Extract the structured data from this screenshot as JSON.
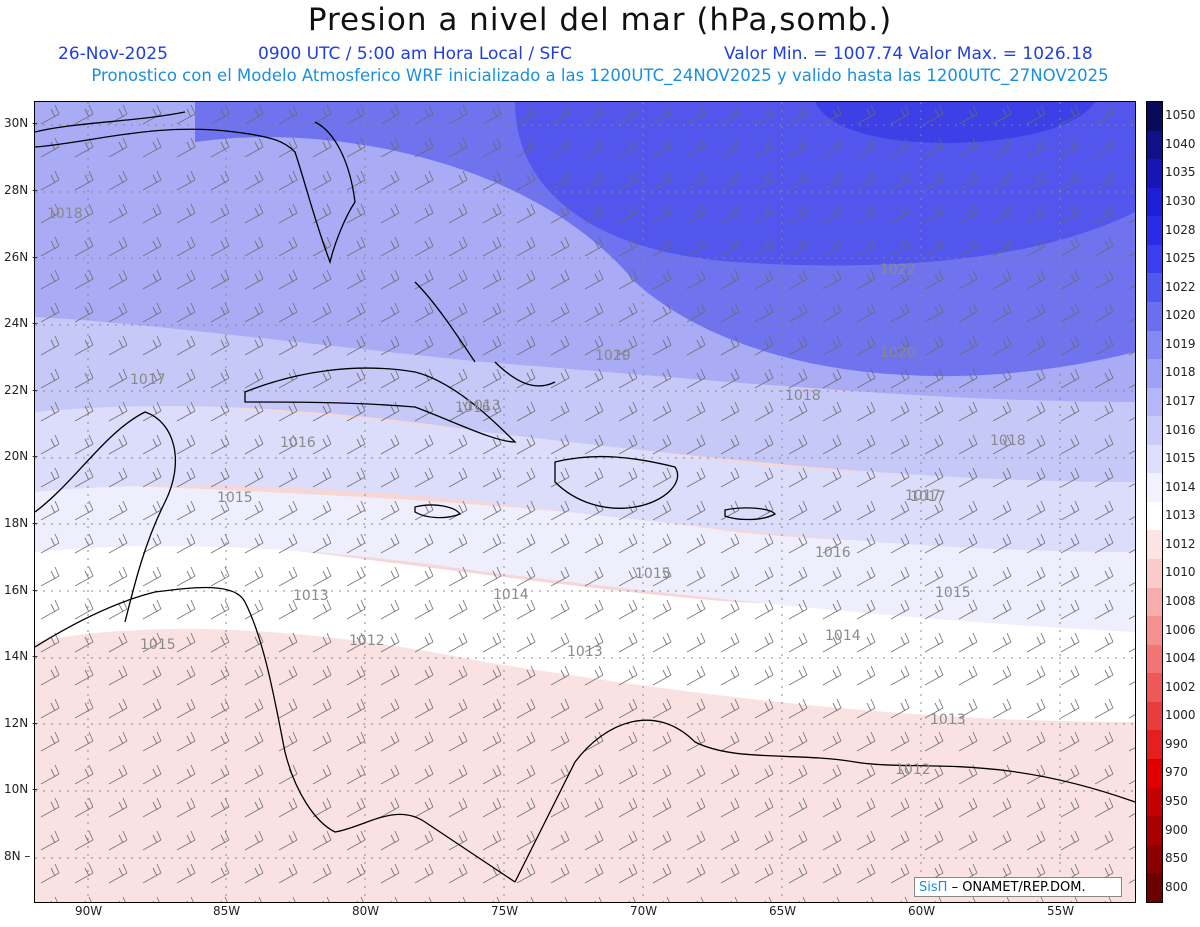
{
  "title": "Presion a nivel del mar (hPa,somb.)",
  "header": {
    "date": "26-Nov-2025",
    "time": "0900 UTC / 5:00 am Hora Local / SFC",
    "minmax": "Valor Min. = 1007.74  Valor Max. = 1026.18",
    "description": "Pronostico con el Modelo Atmosferico WRF inicializado a las 1200UTC_24NOV2025 y valido hasta las  1200UTC_27NOV2025"
  },
  "lat_labels": [
    "30N",
    "28N",
    "26N",
    "24N",
    "22N",
    "20N",
    "18N",
    "16N",
    "14N",
    "12N",
    "10N",
    "8N"
  ],
  "lon_labels": [
    "90W",
    "85W",
    "80W",
    "75W",
    "70W",
    "65W",
    "60W",
    "55W"
  ],
  "colorbar": {
    "levels": [
      "1050",
      "1040",
      "1035",
      "1030",
      "1028",
      "1025",
      "1022",
      "1020",
      "1019",
      "1018",
      "1017",
      "1016",
      "1015",
      "1014",
      "1013",
      "1012",
      "1010",
      "1008",
      "1006",
      "1004",
      "1002",
      "1000",
      "990",
      "970",
      "950",
      "900",
      "850",
      "800"
    ],
    "colors": [
      "#0a0a5a",
      "#10108a",
      "#1515b8",
      "#1e1ed8",
      "#2a2ae8",
      "#3a3ef0",
      "#5257f0",
      "#6a6ff2",
      "#8589f4",
      "#9ea1f6",
      "#b4b6f8",
      "#cacbfa",
      "#dedffc",
      "#f2f2fe",
      "#ffffff",
      "#fde4e4",
      "#fbcaca",
      "#f8adad",
      "#f59090",
      "#f27474",
      "#ee5858",
      "#ea3c3c",
      "#e61e1e",
      "#e00000",
      "#c40000",
      "#a80000",
      "#8a0000",
      "#6a0000"
    ]
  },
  "isobar_labels": [
    "1018",
    "1017",
    "1016",
    "1015",
    "1015",
    "1013",
    "1012",
    "1013",
    "1014",
    "1015",
    "1016",
    "1017",
    "1018",
    "1019",
    "1020",
    "1020",
    "1022",
    "1018",
    "1017",
    "1016",
    "1015",
    "1014",
    "1013",
    "1012",
    "1013"
  ],
  "credit": {
    "brand": "SisΠ",
    "org": "– ONAMET/REP.DOM."
  }
}
